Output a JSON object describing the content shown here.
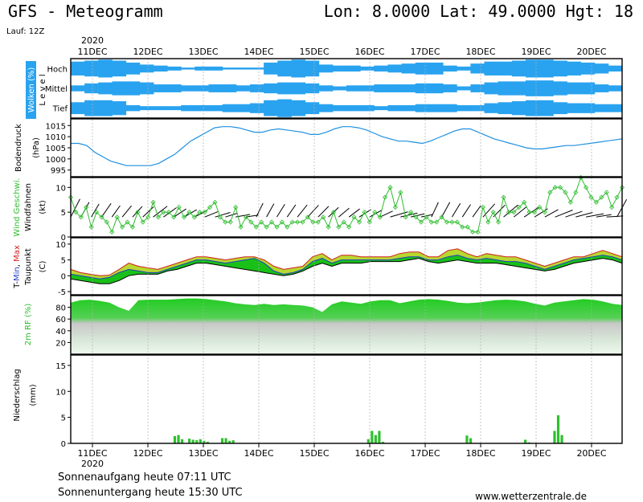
{
  "header": {
    "title": "GFS - Meteogramm",
    "location": "Lon: 8.0000  Lat: 49.0000  Hgt: 18",
    "run": "Lauf: 12Z"
  },
  "footer": {
    "sunrise": "Sonnenaufgang heute 07:11 UTC",
    "sunset": "Sonnenuntergang heute 15:30 UTC",
    "website": "www.wetterzentrale.de"
  },
  "axis": {
    "year": "2020",
    "days": [
      "11DEC",
      "12DEC",
      "13DEC",
      "14DEC",
      "15DEC",
      "16DEC",
      "17DEC",
      "18DEC",
      "19DEC",
      "20DEC"
    ]
  },
  "colors": {
    "cloud": "#29a3f0",
    "pressure": "#1e90e0",
    "wind": "#2ebd2e",
    "tmin": "#2040c0",
    "tmax": "#d02020",
    "temp_fill_dark": "#18c018",
    "temp_fill_light": "#b8d830",
    "rh_fill": "#22cc22",
    "precip": "#2cc02c"
  },
  "chart_data": [
    {
      "type": "heatmap",
      "panel": "clouds",
      "ylabel": "Wolken (%)",
      "levels_label": "L e v e l",
      "levels": [
        "Hoch",
        "Mittel",
        "Tief"
      ],
      "coverage_percent": {
        "Hoch": [
          70,
          80,
          90,
          80,
          60,
          40,
          30,
          20,
          10,
          20,
          20,
          10,
          10,
          10,
          60,
          80,
          90,
          80,
          40,
          30,
          30,
          20,
          30,
          40,
          50,
          60,
          60,
          30,
          20,
          50,
          70,
          70,
          80,
          90,
          90,
          80,
          70,
          60,
          50,
          30
        ],
        "Mittel": [
          30,
          50,
          60,
          70,
          70,
          60,
          40,
          40,
          30,
          30,
          40,
          40,
          30,
          40,
          50,
          60,
          60,
          50,
          30,
          20,
          30,
          30,
          40,
          40,
          40,
          50,
          50,
          40,
          20,
          40,
          60,
          70,
          70,
          80,
          80,
          70,
          60,
          60,
          40,
          30
        ],
        "Tief": [
          60,
          80,
          80,
          70,
          30,
          20,
          20,
          20,
          30,
          30,
          30,
          40,
          40,
          50,
          80,
          90,
          80,
          60,
          40,
          30,
          30,
          30,
          20,
          30,
          30,
          40,
          40,
          40,
          30,
          30,
          50,
          60,
          70,
          80,
          80,
          60,
          50,
          50,
          40,
          40
        ]
      }
    },
    {
      "type": "line",
      "panel": "pressure",
      "ylabel": "Bodendruck",
      "yunit": "(hPa)",
      "ylim": [
        992,
        1018
      ],
      "yticks": [
        995,
        1000,
        1005,
        1010,
        1015
      ],
      "values": [
        1007,
        1007,
        1006,
        1003,
        1001,
        999,
        998,
        997,
        997,
        997,
        997,
        998,
        1000,
        1002,
        1005,
        1008,
        1010,
        1012,
        1014,
        1014.5,
        1014.5,
        1014,
        1013,
        1012,
        1012,
        1013,
        1013.5,
        1013,
        1012.5,
        1012,
        1011,
        1011,
        1012,
        1013.5,
        1014.5,
        1014.5,
        1014,
        1013,
        1011.5,
        1010,
        1009,
        1008,
        1008,
        1007.5,
        1007,
        1008,
        1009.5,
        1011,
        1012.5,
        1013.5,
        1013.5,
        1012,
        1010.5,
        1009,
        1008,
        1007,
        1006,
        1005,
        1004.5,
        1004.5,
        1005,
        1005.5,
        1006,
        1006,
        1006.5,
        1007,
        1007.5,
        1008,
        1008.5,
        1009
      ]
    },
    {
      "type": "line",
      "panel": "wind",
      "ylabel": "Wind Geschwi.",
      "ylabel2": "Windfahnen",
      "yunit": "(kt)",
      "ylim": [
        0,
        12
      ],
      "yticks": [
        0,
        5,
        10
      ],
      "values": [
        8,
        5,
        4,
        6,
        2,
        5,
        4,
        3,
        1,
        4,
        2,
        3,
        2,
        5,
        3,
        4,
        7,
        4,
        5,
        5,
        4,
        6,
        4,
        5,
        4,
        5,
        5,
        6,
        7,
        4,
        3,
        3,
        6,
        2,
        4,
        3,
        2,
        3,
        2,
        3,
        2,
        3,
        2,
        3,
        3,
        3,
        4,
        3,
        3,
        4,
        2,
        5,
        2,
        3,
        2,
        4,
        3,
        5,
        3,
        5,
        4,
        8,
        10,
        6,
        9,
        4,
        5,
        4,
        3,
        4,
        3,
        3,
        4,
        3,
        3,
        3,
        2,
        2,
        1,
        1,
        6,
        3,
        5,
        3,
        8,
        5,
        5,
        6,
        7,
        5,
        5,
        6,
        5,
        9,
        10,
        10,
        9,
        7,
        9,
        12,
        10,
        8,
        7,
        8,
        9,
        6,
        8,
        10
      ]
    },
    {
      "type": "area",
      "panel": "temperature",
      "ylabel_parts": [
        "T-",
        "Min",
        ", ",
        "Max"
      ],
      "ylabel2": "Taupunkt",
      "yunit": "(C)",
      "ylim": [
        -6,
        12
      ],
      "yticks": [
        -5,
        0,
        5,
        10
      ],
      "tmax": [
        2,
        1,
        0.5,
        0,
        0.2,
        2,
        4,
        3,
        2.5,
        2,
        3,
        4,
        5,
        6,
        6,
        5.5,
        5,
        5.5,
        6,
        6,
        5,
        3,
        2,
        2.5,
        3,
        6,
        7,
        5,
        6.5,
        6.5,
        6,
        6,
        6,
        6,
        7,
        7.5,
        7.5,
        6,
        6,
        8,
        8.5,
        7,
        6,
        7,
        6.5,
        6,
        6,
        5,
        4,
        3,
        4,
        5,
        6,
        6,
        7,
        8,
        7,
        6
      ],
      "tmin": [
        0.5,
        0,
        -0.5,
        -1,
        -0.5,
        1,
        2,
        1.5,
        1,
        1,
        2,
        3,
        4,
        5,
        5,
        4.5,
        4,
        4.5,
        5,
        5.5,
        4,
        1.5,
        0.5,
        1,
        2,
        4.5,
        5.5,
        4,
        5,
        5,
        5,
        5,
        5,
        5,
        5.5,
        6,
        6,
        5,
        5,
        6,
        6.5,
        5.5,
        5,
        5.5,
        5,
        4.5,
        4.5,
        4,
        3,
        2,
        3,
        4,
        5,
        5.5,
        6,
        6.5,
        6,
        5
      ],
      "dewpoint": [
        -1,
        -1.5,
        -2,
        -2.5,
        -2.5,
        -1.5,
        0,
        0.5,
        0.5,
        0.5,
        1.5,
        2,
        3,
        4,
        4,
        3.5,
        3,
        2.5,
        2,
        1.5,
        1,
        0.5,
        0,
        0.5,
        1.5,
        3,
        4,
        3,
        4,
        4,
        4,
        4.5,
        4.5,
        4.5,
        4.5,
        5,
        5.5,
        4.5,
        4,
        4.5,
        5,
        4.5,
        4,
        4,
        4,
        3.5,
        3,
        2.5,
        2,
        1.5,
        2,
        3,
        4,
        4.5,
        5,
        5.5,
        5,
        4
      ]
    },
    {
      "type": "area",
      "panel": "humidity",
      "ylabel": "2m RF (%)",
      "ylim": [
        0,
        100
      ],
      "yticks": [
        20,
        40,
        60,
        80
      ],
      "values": [
        88,
        92,
        93,
        91,
        88,
        80,
        74,
        92,
        93,
        93,
        93,
        94,
        95,
        95,
        94,
        92,
        90,
        87,
        85,
        84,
        86,
        84,
        85,
        84,
        83,
        80,
        72,
        85,
        90,
        88,
        86,
        90,
        92,
        92,
        87,
        90,
        93,
        94,
        93,
        91,
        88,
        87,
        88,
        90,
        92,
        93,
        92,
        90,
        86,
        83,
        88,
        90,
        92,
        94,
        93,
        90,
        86,
        84
      ]
    },
    {
      "type": "bar",
      "panel": "precipitation",
      "ylabel": "Niederschlag",
      "yunit": "(mm)",
      "ylim": [
        0,
        17
      ],
      "yticks": [
        0,
        5,
        10,
        15
      ],
      "values": [
        0,
        0,
        0,
        0,
        0,
        0,
        0,
        0,
        0,
        0,
        0,
        0,
        0,
        0,
        0,
        0,
        0,
        0,
        0,
        0,
        0,
        0,
        0,
        0,
        0,
        0,
        0,
        0,
        1.4,
        1.6,
        0.8,
        0,
        0.9,
        0.7,
        0.6,
        0.8,
        0.5,
        0.3,
        0,
        0,
        0,
        1.0,
        1.0,
        0.5,
        0.6,
        0,
        0,
        0,
        0,
        0,
        0,
        0,
        0,
        0,
        0,
        0,
        0,
        0,
        0,
        0,
        0,
        0,
        0,
        0,
        0,
        0,
        0,
        0,
        0,
        0,
        0,
        0,
        0,
        0,
        0,
        0,
        0,
        0,
        0,
        0,
        0,
        0.8,
        2.4,
        1.6,
        2.4,
        0.3,
        0,
        0,
        0,
        0,
        0,
        0,
        0,
        0,
        0,
        0,
        0,
        0,
        0,
        0,
        0,
        0,
        0,
        0,
        0,
        0,
        0,
        0,
        1.5,
        1.0,
        0,
        0,
        0,
        0,
        0,
        0,
        0,
        0,
        0,
        0,
        0,
        0,
        0,
        0,
        0.7,
        0.2,
        0,
        0,
        0,
        0,
        0,
        0,
        2.4,
        5.4,
        1.6,
        0,
        0,
        0,
        0,
        0,
        0,
        0,
        0,
        0,
        0.1,
        0,
        0,
        0,
        0,
        0,
        0
      ]
    }
  ]
}
